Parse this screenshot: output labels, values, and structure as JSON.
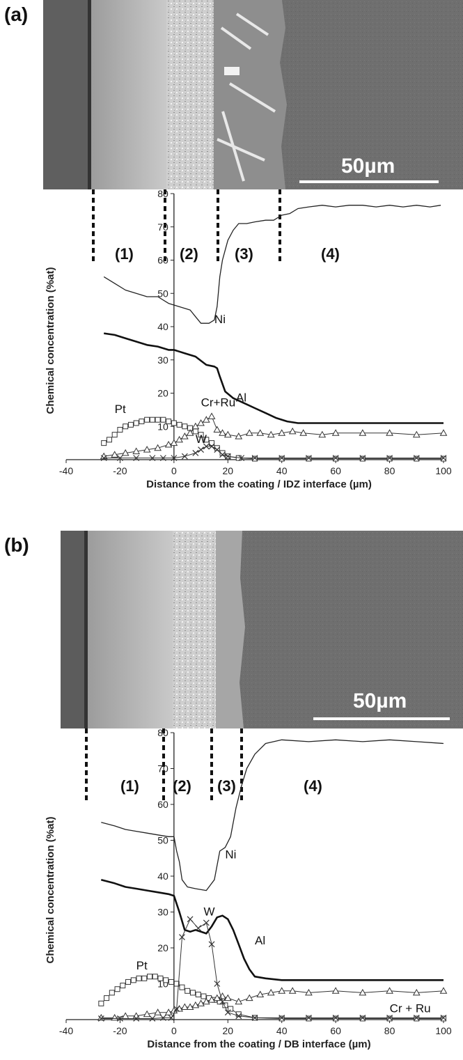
{
  "panels": [
    {
      "panel_label": "(a)",
      "scale_label": "50µm",
      "regions": [
        "(1)",
        "(2)",
        "(3)",
        "(4)"
      ],
      "region_boundaries_um": [
        -25,
        0,
        19,
        42
      ]
    },
    {
      "panel_label": "(b)",
      "scale_label": "50µm",
      "regions": [
        "(1)",
        "(2)",
        "(3)",
        "(4)"
      ],
      "region_boundaries_um": [
        -28,
        0,
        17,
        28
      ]
    }
  ],
  "chart_data": [
    {
      "type": "line",
      "xlabel": "Distance from the coating / IDZ interface (µm)",
      "ylabel": "Chemical concentration (%at)",
      "xlim": [
        -40,
        100
      ],
      "ylim": [
        0,
        80
      ],
      "xticks": [
        -40,
        -20,
        0,
        20,
        40,
        60,
        80,
        100
      ],
      "yticks": [
        10,
        20,
        30,
        40,
        50,
        60,
        70,
        80
      ],
      "grid": false,
      "series": [
        {
          "name": "Ni",
          "marker": "none",
          "stroke": "#222222",
          "width": 1.3,
          "x": [
            -26,
            -22,
            -18,
            -14,
            -10,
            -6,
            -2,
            2,
            6,
            8,
            10,
            13,
            15,
            16,
            17,
            18,
            19,
            20,
            22,
            24,
            27,
            30,
            34,
            37,
            40,
            43,
            46,
            50,
            55,
            60,
            65,
            70,
            75,
            80,
            85,
            90,
            95,
            99
          ],
          "y": [
            55,
            53,
            51,
            50,
            49,
            49,
            47,
            46,
            45,
            43,
            41,
            41,
            42,
            46,
            55,
            60,
            63,
            66,
            69,
            71,
            71,
            71.5,
            72,
            72,
            73.5,
            74,
            75.5,
            76,
            76.5,
            76,
            76.5,
            76.5,
            76,
            76.5,
            76,
            76.5,
            76,
            76.5
          ]
        },
        {
          "name": "Al",
          "marker": "none",
          "stroke": "#111111",
          "width": 2.6,
          "x": [
            -26,
            -22,
            -18,
            -14,
            -10,
            -6,
            -2,
            0,
            4,
            8,
            12,
            15,
            16,
            17,
            19,
            22,
            26,
            30,
            34,
            38,
            42,
            46,
            50,
            60,
            70,
            80,
            90,
            100
          ],
          "y": [
            38,
            37.5,
            36.5,
            35.5,
            34.5,
            34,
            33,
            33,
            32,
            31,
            28.5,
            28,
            27.5,
            25,
            20.5,
            18.5,
            17,
            15.5,
            14,
            12.5,
            11.5,
            11,
            11,
            11,
            11,
            11,
            11,
            11
          ]
        },
        {
          "name": "Pt",
          "marker": "square",
          "stroke": "#333333",
          "width": 1,
          "x": [
            -26,
            -24,
            -22,
            -20,
            -18,
            -16,
            -14,
            -12,
            -10,
            -8,
            -6,
            -4,
            -2,
            0,
            2,
            4,
            6,
            8,
            10,
            12,
            14,
            16,
            18,
            20,
            24,
            30,
            40,
            50,
            60,
            70,
            80,
            90,
            100
          ],
          "y": [
            5,
            6,
            7.5,
            9,
            10,
            10.5,
            11,
            11.5,
            12,
            12,
            12,
            12,
            11.5,
            11,
            10.5,
            10,
            9.5,
            8.5,
            7.5,
            6,
            5,
            3.5,
            2,
            1,
            0.5,
            0.3,
            0.3,
            0.3,
            0.3,
            0.3,
            0.3,
            0.3,
            0.3
          ]
        },
        {
          "name": "Cr+Ru",
          "marker": "triangle",
          "stroke": "#333333",
          "width": 1,
          "x": [
            -26,
            -22,
            -18,
            -14,
            -10,
            -6,
            -2,
            0,
            2,
            4,
            6,
            8,
            10,
            12,
            14,
            16,
            18,
            20,
            24,
            28,
            32,
            36,
            40,
            44,
            48,
            55,
            60,
            70,
            80,
            90,
            100
          ],
          "y": [
            1,
            1.5,
            2,
            2.5,
            3,
            3.5,
            4.5,
            5,
            6,
            7,
            8,
            10,
            11,
            12,
            13,
            9,
            8,
            7.5,
            7,
            8,
            8,
            7.5,
            8,
            8.5,
            8,
            7.5,
            8,
            8,
            8,
            7.5,
            8
          ]
        },
        {
          "name": "W",
          "marker": "x",
          "stroke": "#333333",
          "width": 1,
          "x": [
            -26,
            -20,
            -14,
            -8,
            -4,
            0,
            4,
            8,
            10,
            12,
            14,
            16,
            18,
            20,
            25,
            30,
            40,
            50,
            60,
            70,
            80,
            90,
            100
          ],
          "y": [
            0.5,
            0.5,
            0.5,
            0.5,
            0.5,
            0.5,
            1,
            2,
            3,
            4,
            4,
            3,
            1.5,
            1,
            0.5,
            0.5,
            0.5,
            0.5,
            0.5,
            0.5,
            0.5,
            0.5,
            0.5
          ]
        }
      ],
      "annotations": [
        {
          "text": "Ni",
          "x": 15,
          "y": 41
        },
        {
          "text": "Al",
          "x": 23,
          "y": 17.5
        },
        {
          "text": "Pt",
          "x": -22,
          "y": 14
        },
        {
          "text": "Cr+Ru",
          "x": 10,
          "y": 16
        },
        {
          "text": "W",
          "x": 8,
          "y": 5
        }
      ]
    },
    {
      "type": "line",
      "xlabel": "Distance from the coating / DB interface (µm)",
      "ylabel": "Chemical concentration (%at)",
      "xlim": [
        -40,
        100
      ],
      "ylim": [
        0,
        80
      ],
      "xticks": [
        -40,
        -20,
        0,
        20,
        40,
        60,
        80,
        100
      ],
      "yticks": [
        10,
        20,
        30,
        40,
        50,
        60,
        70,
        80
      ],
      "grid": false,
      "series": [
        {
          "name": "Ni",
          "marker": "none",
          "stroke": "#222222",
          "width": 1.3,
          "x": [
            -27,
            -22,
            -18,
            -14,
            -10,
            -6,
            -2,
            0,
            1,
            2,
            3,
            5,
            8,
            12,
            15,
            17,
            19,
            21,
            23,
            25,
            27,
            30,
            34,
            40,
            50,
            60,
            70,
            80,
            90,
            100
          ],
          "y": [
            55,
            54,
            53,
            52.5,
            52,
            51.5,
            51,
            51,
            47,
            44,
            39,
            37,
            36.5,
            36,
            39,
            47,
            48,
            51,
            59,
            65,
            70,
            74,
            77,
            78,
            77.5,
            78,
            77.5,
            78,
            77.5,
            77
          ]
        },
        {
          "name": "Al",
          "marker": "none",
          "stroke": "#111111",
          "width": 2.6,
          "x": [
            -27,
            -22,
            -18,
            -14,
            -10,
            -6,
            -2,
            0,
            2,
            4,
            6,
            8,
            10,
            12,
            14,
            16,
            18,
            20,
            22,
            24,
            26,
            28,
            30,
            34,
            40,
            50,
            60,
            70,
            80,
            90,
            100
          ],
          "y": [
            39,
            38,
            37,
            36.5,
            36,
            35.5,
            35,
            34.5,
            30,
            25,
            24.5,
            25,
            24.5,
            24,
            26,
            28.5,
            29,
            28,
            25,
            21,
            17,
            14,
            12,
            11.5,
            11,
            11,
            11,
            11,
            11,
            11,
            11
          ]
        },
        {
          "name": "Pt",
          "marker": "square",
          "stroke": "#333333",
          "width": 1,
          "x": [
            -27,
            -25,
            -23,
            -21,
            -19,
            -17,
            -15,
            -13,
            -11,
            -9,
            -7,
            -5,
            -3,
            -1,
            1,
            3,
            5,
            7,
            9,
            11,
            13,
            15,
            17,
            19,
            21,
            24,
            30,
            40,
            50,
            60,
            70,
            80,
            90,
            100
          ],
          "y": [
            4.5,
            6,
            7.5,
            8.5,
            9.5,
            10.5,
            11,
            11.5,
            11.5,
            12,
            12,
            11.5,
            11,
            10.5,
            10,
            9,
            8,
            7.5,
            7,
            6.5,
            6,
            5.5,
            5,
            4,
            3,
            1.5,
            0.5,
            0.3,
            0.3,
            0.3,
            0.3,
            0.3,
            0.3,
            0.3
          ]
        },
        {
          "name": "Cr + Ru",
          "marker": "triangle",
          "stroke": "#333333",
          "width": 1,
          "x": [
            -27,
            -22,
            -18,
            -14,
            -10,
            -6,
            -2,
            0,
            2,
            4,
            6,
            8,
            10,
            12,
            14,
            16,
            18,
            20,
            24,
            28,
            32,
            36,
            40,
            44,
            50,
            60,
            70,
            80,
            90,
            100
          ],
          "y": [
            0.5,
            0.5,
            1,
            1,
            1.5,
            2,
            2,
            2.5,
            3,
            3.5,
            3.5,
            4,
            4.5,
            5,
            5.5,
            6,
            6.5,
            6,
            5,
            6,
            7,
            7.5,
            8,
            8,
            7.5,
            8,
            7.5,
            8,
            7.5,
            8
          ]
        },
        {
          "name": "W",
          "marker": "x",
          "stroke": "#333333",
          "width": 1,
          "x": [
            -27,
            -20,
            -14,
            -8,
            -4,
            -1,
            1,
            3,
            6,
            9,
            12,
            14,
            16,
            18,
            20,
            24,
            30,
            40,
            50,
            60,
            70,
            80,
            90,
            100
          ],
          "y": [
            0.3,
            0.3,
            0.3,
            0.3,
            0.5,
            0.5,
            3,
            23,
            28,
            25.5,
            27,
            21,
            10,
            5,
            2,
            1,
            0.5,
            0.5,
            0.5,
            0.5,
            0.5,
            0.5,
            0.5,
            0.5
          ]
        }
      ],
      "annotations": [
        {
          "text": "Ni",
          "x": 19,
          "y": 45
        },
        {
          "text": "W",
          "x": 11,
          "y": 29
        },
        {
          "text": "Al",
          "x": 30,
          "y": 21
        },
        {
          "text": "Pt",
          "x": -14,
          "y": 14
        },
        {
          "text": "Cr + Ru",
          "x": 80,
          "y": 2
        }
      ]
    }
  ]
}
